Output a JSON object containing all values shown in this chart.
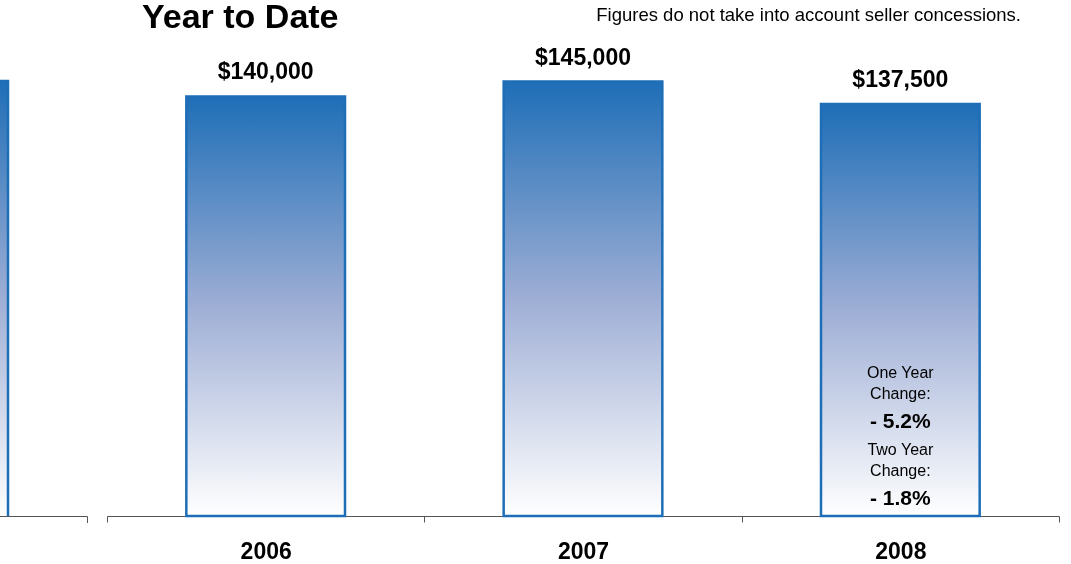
{
  "chart_data": {
    "type": "bar",
    "title": "Year to Date",
    "categories": [
      "2006",
      "2007",
      "2008"
    ],
    "values": [
      140000,
      145000,
      137500
    ],
    "value_labels": [
      "$140,000",
      "$145,000",
      "$137,500"
    ],
    "color": "#1e6eb7",
    "tick_labels": "x",
    "annotations": [
      "Figures do not take into account seller concessions.",
      "One Year Change:",
      "- 5.2%",
      "Two Year Change:",
      "- 1.8%"
    ]
  }
}
